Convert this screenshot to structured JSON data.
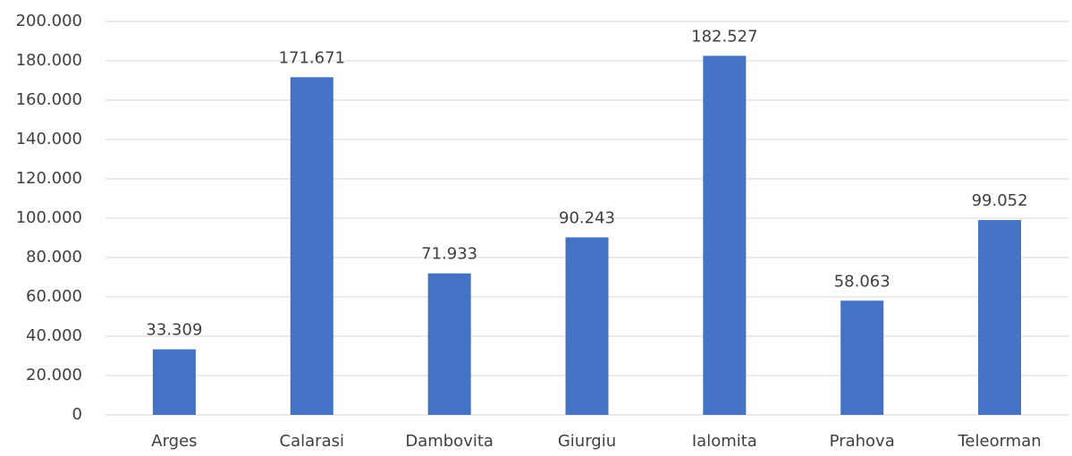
{
  "chart_data": {
    "type": "bar",
    "categories": [
      "Arges",
      "Calarasi",
      "Dambovita",
      "Giurgiu",
      "Ialomita",
      "Prahova",
      "Teleorman"
    ],
    "values": [
      33309,
      171671,
      71933,
      90243,
      182527,
      58063,
      99052
    ],
    "value_labels": [
      "33.309",
      "171.671",
      "71.933",
      "90.243",
      "182.527",
      "58.063",
      "99.052"
    ],
    "color": "#4472c4",
    "ylim": [
      0,
      200000
    ],
    "yticks": [
      0,
      {
        "value": 20000,
        "label": "20.000"
      },
      {
        "value": 40000,
        "label": "40.000"
      },
      {
        "value": 60000,
        "label": "60.000"
      },
      {
        "value": 80000,
        "label": "80.000"
      },
      {
        "value": 100000,
        "label": "100.000"
      },
      {
        "value": 120000,
        "label": "120.000"
      },
      {
        "value": 140000,
        "label": "140.000"
      },
      {
        "value": 160000,
        "label": "160.000"
      },
      {
        "value": 180000,
        "label": "180.000"
      },
      {
        "value": 200000,
        "label": "200.000"
      }
    ],
    "grid": true
  }
}
